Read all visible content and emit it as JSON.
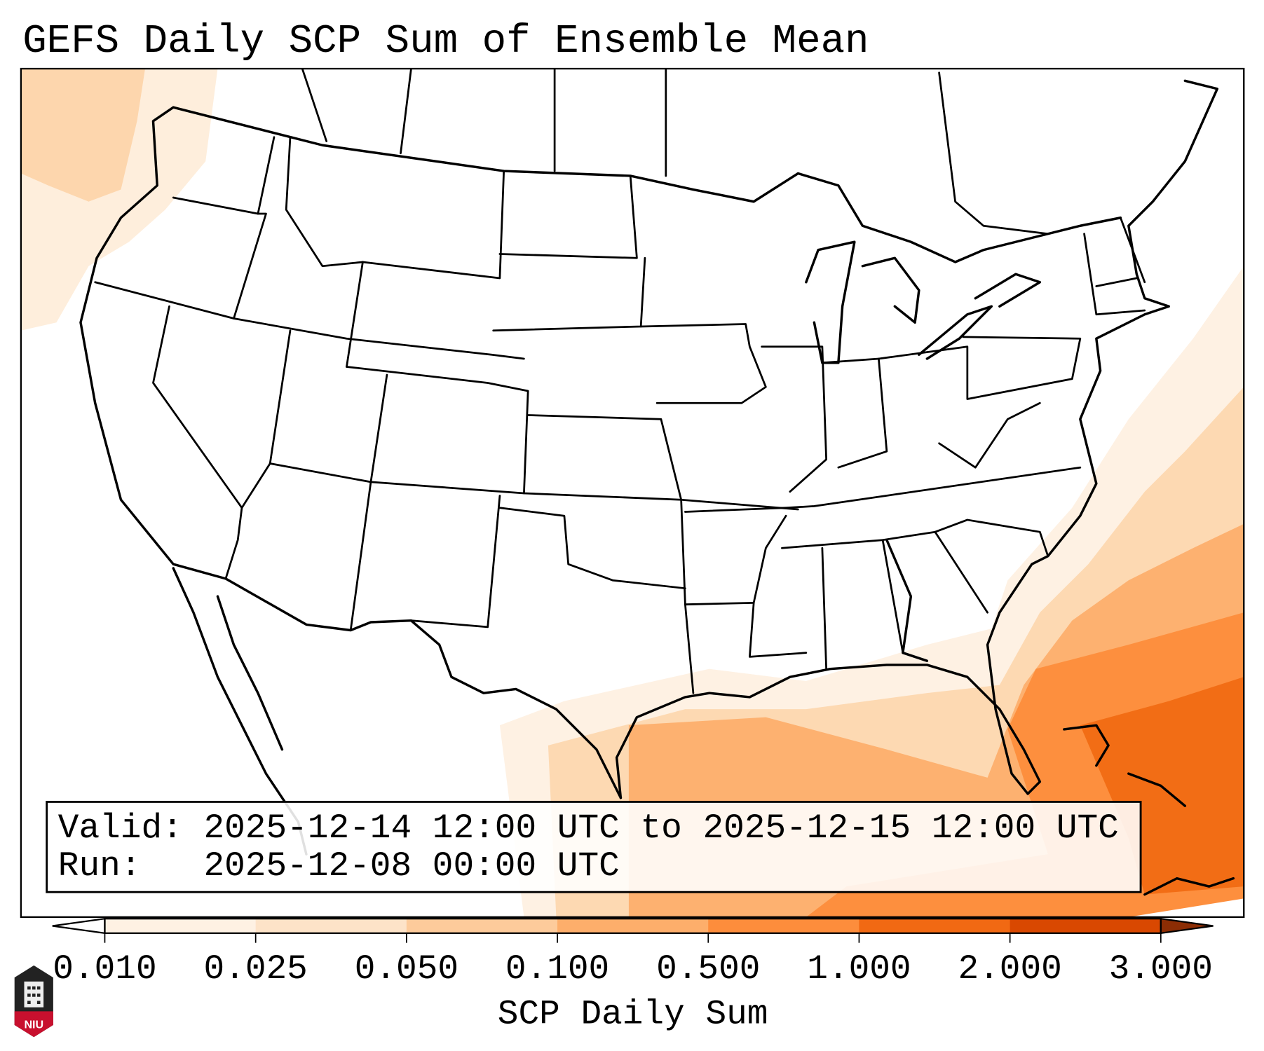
{
  "title": "GEFS Daily SCP Sum of Ensemble Mean",
  "info_box": {
    "valid_line": "Valid: 2025-12-14 12:00 UTC to 2025-12-15 12:00 UTC",
    "run_line": "Run:   2025-12-08 00:00 UTC"
  },
  "colorbar": {
    "label": "SCP Daily Sum",
    "tick_labels": [
      "0.010",
      "0.025",
      "0.050",
      "0.100",
      "0.500",
      "1.000",
      "2.000",
      "3.000"
    ],
    "colors": [
      "#fef1e3",
      "#fde3c8",
      "#fdcb9b",
      "#fdae6b",
      "#fd8d3c",
      "#f16913",
      "#d94801"
    ],
    "under_color": "#ffffff",
    "over_color": "#8c2d04"
  },
  "logo": {
    "text": "NIU"
  }
}
